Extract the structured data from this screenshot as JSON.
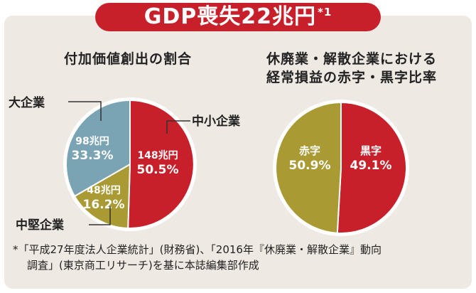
{
  "banner": {
    "title": "GDP喪失22兆円",
    "marker": "*1"
  },
  "chart_data": [
    {
      "type": "pie",
      "title": "付加価値創出の割合",
      "slices": [
        {
          "name": "中小企業",
          "amount": "148兆円",
          "value": 50.5,
          "percent_label": "50.5%",
          "color": "#c8202a"
        },
        {
          "name": "中堅企業",
          "amount": "48兆円",
          "value": 16.2,
          "percent_label": "16.2%",
          "color": "#a99a33"
        },
        {
          "name": "大企業",
          "amount": "98兆円",
          "value": 33.3,
          "percent_label": "33.3%",
          "color": "#7aa3b3"
        }
      ]
    },
    {
      "type": "pie",
      "title": "休廃業・解散企業における\n経常損益の赤字・黒字比率",
      "slices": [
        {
          "name": "赤字",
          "value": 50.9,
          "percent_label": "50.9%",
          "color": "#c8202a"
        },
        {
          "name": "黒字",
          "value": 49.1,
          "percent_label": "49.1%",
          "color": "#a99a33"
        }
      ]
    }
  ],
  "footnote": {
    "line1": "*「平成27年度法人企業統計」(財務省)、「2016年『休廃業・解散企業』動向",
    "line2": "調査」(東京商工リサーチ)を基に本誌編集部作成"
  }
}
